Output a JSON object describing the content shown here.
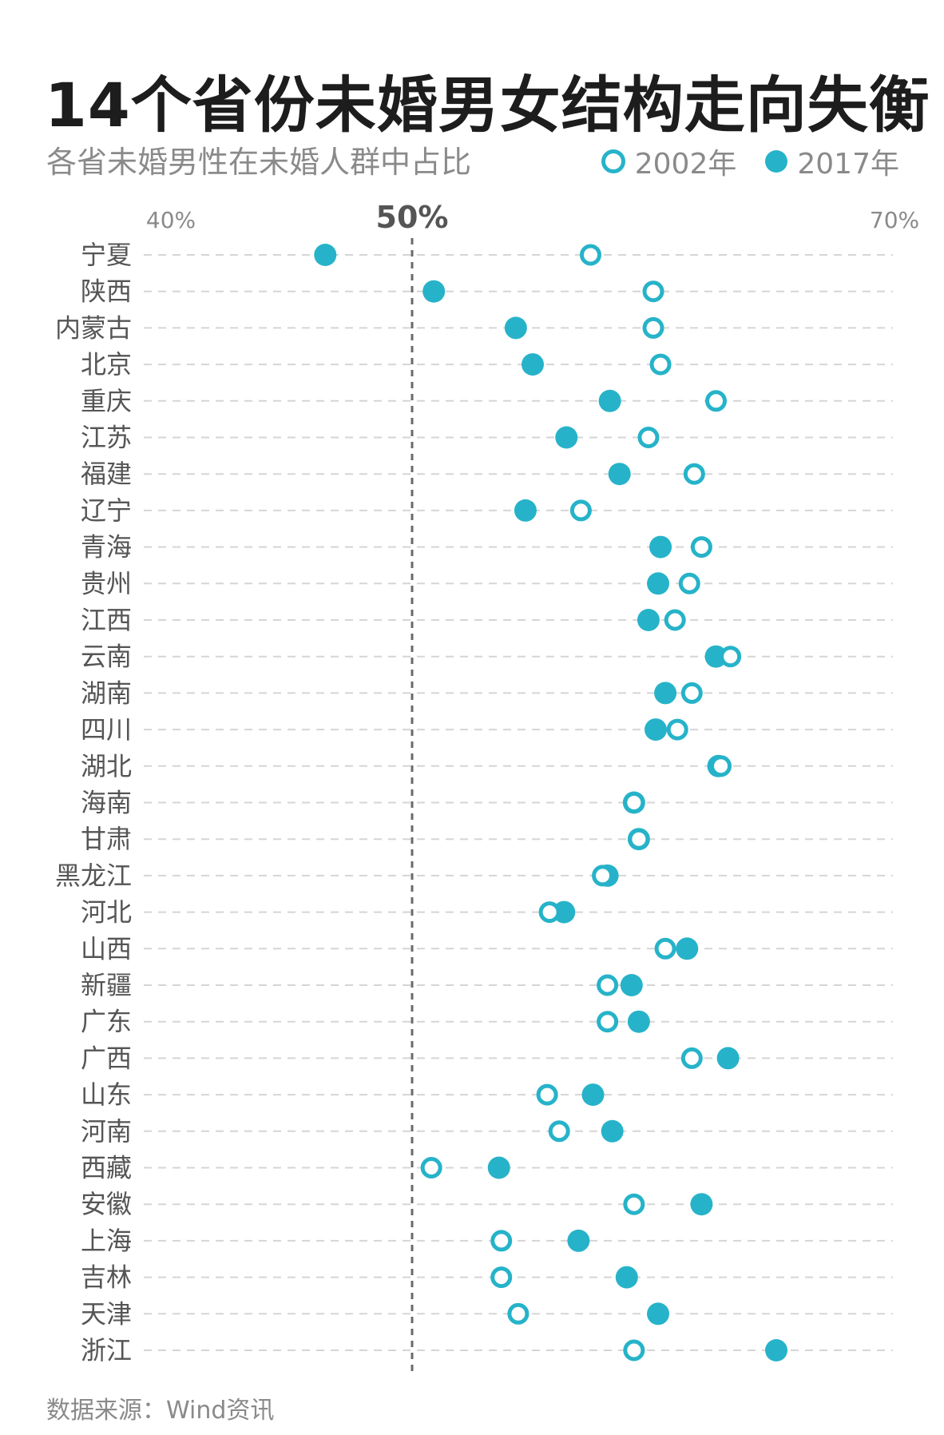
{
  "title": "14个省份未婚男女结构走向失衡",
  "subtitle": "各省未婚男性在未婚人群中占比",
  "legend": {
    "series_2002": "2002年",
    "series_2017": "2017年"
  },
  "source": "数据来源：Wind资讯",
  "colors": {
    "accent": "#26b3c9",
    "grid": "#d5d5d5",
    "reference_line": "#6a6a6a"
  },
  "chart_data": {
    "type": "scatter",
    "xlim": [
      40,
      70
    ],
    "x_ticks": [
      {
        "value": 40,
        "label": "40%",
        "emphasis": false
      },
      {
        "value": 50,
        "label": "50%",
        "emphasis": true
      },
      {
        "value": 70,
        "label": "70%",
        "emphasis": false
      }
    ],
    "reference_line": 50,
    "categories": [
      "宁夏",
      "陕西",
      "内蒙古",
      "北京",
      "重庆",
      "江苏",
      "福建",
      "辽宁",
      "青海",
      "贵州",
      "江西",
      "云南",
      "湖南",
      "四川",
      "湖北",
      "海南",
      "甘肃",
      "黑龙江",
      "河北",
      "山西",
      "新疆",
      "广东",
      "广西",
      "山东",
      "河南",
      "西藏",
      "安徽",
      "上海",
      "吉林",
      "天津",
      "浙江"
    ],
    "series": [
      {
        "name": "2002年",
        "marker": "open",
        "values": [
          57.4,
          60.0,
          60.0,
          60.3,
          62.6,
          59.8,
          61.7,
          57.0,
          62.0,
          61.5,
          60.9,
          63.2,
          61.6,
          61.0,
          62.8,
          59.2,
          59.4,
          57.9,
          55.7,
          60.5,
          58.1,
          58.1,
          61.6,
          55.6,
          56.1,
          50.8,
          59.2,
          53.7,
          53.7,
          54.4,
          59.2
        ]
      },
      {
        "name": "2017年",
        "marker": "filled",
        "values": [
          46.4,
          50.9,
          54.3,
          55.0,
          58.2,
          56.4,
          58.6,
          54.7,
          60.3,
          60.2,
          59.8,
          62.6,
          60.5,
          60.1,
          62.7,
          59.2,
          59.4,
          58.1,
          56.3,
          61.4,
          59.1,
          59.4,
          63.1,
          57.5,
          58.3,
          53.6,
          62.0,
          56.9,
          58.9,
          60.2,
          65.1
        ]
      }
    ]
  }
}
